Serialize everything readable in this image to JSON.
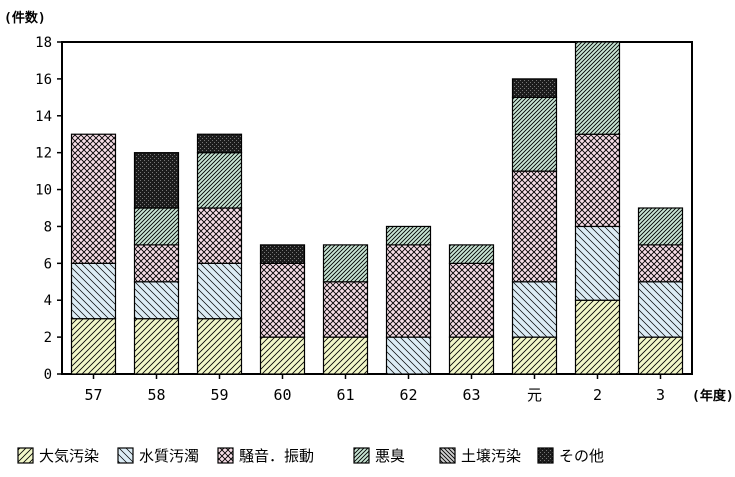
{
  "chart_data": {
    "type": "bar",
    "stacked": true,
    "y_unit_label": "(件数)",
    "x_unit_label": "(年度)",
    "categories": [
      "57",
      "58",
      "59",
      "60",
      "61",
      "62",
      "63",
      "元",
      "2",
      "3"
    ],
    "ylim": [
      0,
      18
    ],
    "yticks": [
      0,
      2,
      4,
      6,
      8,
      10,
      12,
      14,
      16,
      18
    ],
    "grid": false,
    "legend_position": "bottom",
    "series": [
      {
        "name": "大気汚染",
        "pattern": "diag-right",
        "color": "#f2f7c9",
        "values": [
          3,
          3,
          3,
          2,
          2,
          0,
          2,
          2,
          4,
          2
        ]
      },
      {
        "name": "水質汚濁",
        "pattern": "diag-left",
        "color": "#dcecf5",
        "values": [
          3,
          2,
          3,
          0,
          0,
          2,
          0,
          3,
          4,
          3
        ]
      },
      {
        "name": "騒音．振動",
        "pattern": "crosshatch",
        "color": "#f6dde6",
        "values": [
          7,
          2,
          3,
          4,
          3,
          5,
          4,
          6,
          5,
          2
        ]
      },
      {
        "name": "悪臭",
        "pattern": "dense-diag",
        "color": "#c9e6d5",
        "values": [
          0,
          2,
          3,
          0,
          2,
          1,
          1,
          4,
          5,
          2
        ]
      },
      {
        "name": "土壌汚染",
        "pattern": "dense-diag-left",
        "color": "#d0d0d0",
        "values": [
          0,
          0,
          0,
          0,
          0,
          0,
          0,
          0,
          0,
          0
        ]
      },
      {
        "name": "その他",
        "pattern": "dark",
        "color": "#202020",
        "values": [
          0,
          3,
          1,
          1,
          0,
          0,
          0,
          1,
          0,
          0
        ]
      }
    ]
  }
}
